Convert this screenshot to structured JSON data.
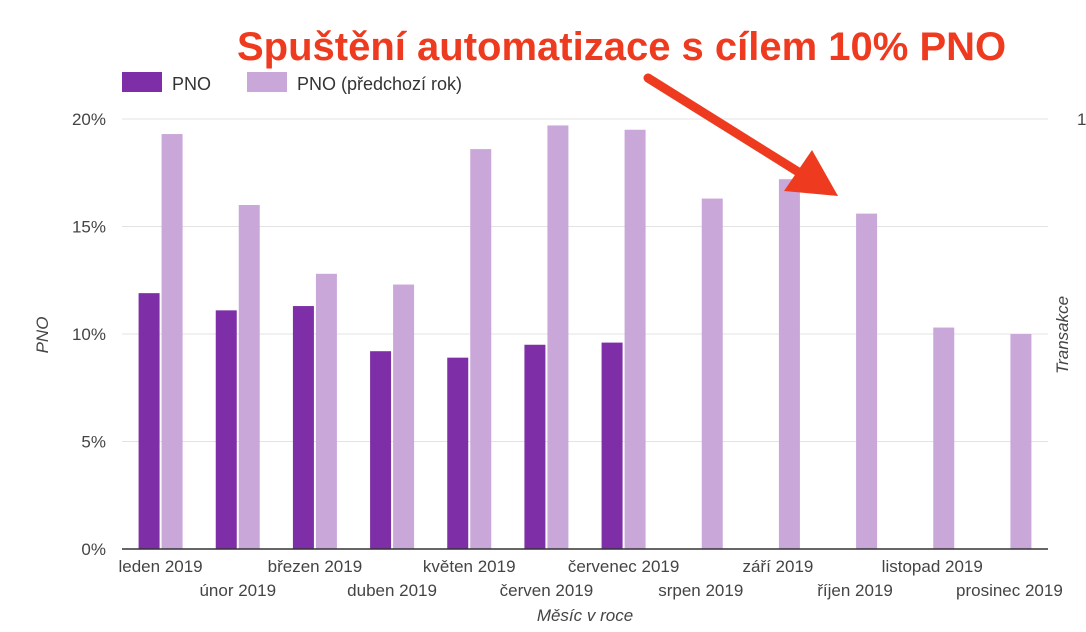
{
  "colors": {
    "series_current": "#7e2fa8",
    "series_previous": "#caa7d9",
    "annotation": "#ee3b1f",
    "grid": "#e3e3e3",
    "baseline": "#333333"
  },
  "annotation": "Spuštění automatizace s cílem 10% PNO",
  "right_axis_partial_tick": "1",
  "chart_data": {
    "type": "bar",
    "title": "",
    "xlabel": "Měsíc v roce",
    "ylabel": "PNO",
    "ylabel_right": "Transakce",
    "ylim": [
      0,
      20
    ],
    "y_ticks": [
      "0%",
      "5%",
      "10%",
      "15%",
      "20%"
    ],
    "grid": true,
    "legend": "top-left",
    "categories": [
      "leden 2019",
      "únor 2019",
      "březen 2019",
      "duben 2019",
      "květen 2019",
      "červen 2019",
      "červenec 2019",
      "srpen 2019",
      "září 2019",
      "říjen 2019",
      "listopad 2019",
      "prosinec 2019"
    ],
    "series": [
      {
        "name": "PNO",
        "values": [
          11.9,
          11.1,
          11.3,
          9.2,
          8.9,
          9.5,
          9.6,
          null,
          null,
          null,
          null,
          null
        ]
      },
      {
        "name": "PNO (předchozí rok)",
        "values": [
          19.3,
          16.0,
          12.8,
          12.3,
          18.6,
          19.7,
          19.5,
          16.3,
          17.2,
          15.6,
          10.3,
          10.0
        ]
      }
    ]
  }
}
